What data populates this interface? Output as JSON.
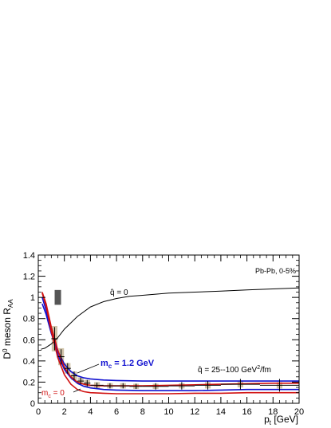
{
  "chart_data": {
    "type": "line",
    "xlabel": "p",
    "xlabel_sub": "t",
    "xlabel_unit": " [GeV]",
    "ylabel": "D",
    "ylabel_sup": "0",
    "ylabel_mid": " meson R",
    "ylabel_sub": "AA",
    "xlim": [
      0,
      20
    ],
    "ylim": [
      0,
      1.4
    ],
    "x_ticks": [
      0,
      2,
      4,
      6,
      8,
      10,
      12,
      14,
      16,
      18,
      20
    ],
    "y_ticks": [
      0,
      0.2,
      0.4,
      0.6,
      0.8,
      1.0,
      1.2,
      1.4
    ],
    "x_tick_labels": [
      "0",
      "2",
      "4",
      "6",
      "8",
      "10",
      "12",
      "14",
      "16",
      "18",
      "20"
    ],
    "y_tick_labels": [
      "0",
      "0.2",
      "0.4",
      "0.6",
      "0.8",
      "1",
      "1.2",
      "1.4"
    ],
    "annotations": {
      "system": "Pb-Pb,  0-5%",
      "qhat_zero_hat": "q̂",
      "qhat_zero": "q̂ = 0",
      "qhat_range": "q̂ = 25--100 GeV",
      "qhat_range_sup": "2",
      "qhat_range_tail": "/fm",
      "mc_massive": "m",
      "mc_massive_sub": "c",
      "mc_massive_tail": " = 1.2 GeV",
      "mc_zero": "m",
      "mc_zero_sub": "c",
      "mc_zero_tail": " = 0"
    },
    "colors": {
      "blue": "#1010d0",
      "red": "#d01010",
      "black": "#000000",
      "band": "#c8b89a",
      "norm_box": "#555555"
    },
    "series": [
      {
        "color": "black",
        "x": [
          0.2,
          0.5,
          1.0,
          1.5,
          2,
          3,
          4,
          5,
          6,
          7,
          8,
          10,
          12,
          14,
          16,
          18,
          20
        ],
        "y": [
          0.51,
          0.52,
          0.56,
          0.62,
          0.7,
          0.82,
          0.91,
          0.96,
          0.99,
          1.01,
          1.02,
          1.04,
          1.05,
          1.06,
          1.07,
          1.08,
          1.09
        ]
      },
      {
        "color": "blue",
        "x": [
          0.3,
          0.6,
          1.0,
          1.5,
          2,
          2.5,
          3,
          3.5,
          4,
          5,
          6,
          8,
          10,
          12,
          14,
          16,
          18,
          20
        ],
        "y": [
          0.94,
          0.84,
          0.66,
          0.49,
          0.37,
          0.3,
          0.26,
          0.24,
          0.23,
          0.22,
          0.215,
          0.21,
          0.21,
          0.21,
          0.21,
          0.21,
          0.21,
          0.21
        ]
      },
      {
        "color": "blue",
        "x": [
          0.3,
          0.6,
          1.0,
          1.5,
          2,
          2.5,
          3,
          3.5,
          4,
          5,
          6,
          8,
          10,
          12,
          14,
          16,
          18,
          20
        ],
        "y": [
          1.0,
          0.88,
          0.67,
          0.46,
          0.32,
          0.24,
          0.19,
          0.16,
          0.145,
          0.13,
          0.125,
          0.12,
          0.12,
          0.12,
          0.125,
          0.13,
          0.13,
          0.13
        ]
      },
      {
        "color": "red",
        "x": [
          0.3,
          0.6,
          1.0,
          1.5,
          2,
          2.5,
          3,
          3.5,
          4,
          5,
          6,
          8,
          10,
          12,
          14,
          16,
          18,
          20
        ],
        "y": [
          1.05,
          0.94,
          0.72,
          0.5,
          0.34,
          0.25,
          0.2,
          0.18,
          0.17,
          0.165,
          0.165,
          0.165,
          0.17,
          0.175,
          0.18,
          0.185,
          0.19,
          0.19
        ]
      },
      {
        "color": "red",
        "x": [
          0.3,
          0.6,
          1.0,
          1.5,
          2,
          2.5,
          3,
          3.5,
          4,
          5,
          6,
          8,
          10,
          12,
          14,
          16,
          18,
          20
        ],
        "y": [
          1.04,
          0.92,
          0.68,
          0.43,
          0.27,
          0.18,
          0.13,
          0.11,
          0.1,
          0.095,
          0.09,
          0.09,
          0.09,
          0.095,
          0.095,
          0.1,
          0.1,
          0.1
        ]
      }
    ],
    "data_points": {
      "name": "",
      "x": [
        1.25,
        1.75,
        2.25,
        2.75,
        3.25,
        3.75,
        4.5,
        5.5,
        6.5,
        7.5,
        9.0,
        11.0,
        13.0,
        15.5,
        18.5
      ],
      "x_err": [
        0.25,
        0.25,
        0.25,
        0.25,
        0.25,
        0.25,
        0.5,
        0.5,
        0.5,
        0.5,
        1.0,
        1.0,
        1.0,
        1.5,
        1.5
      ],
      "y": [
        0.61,
        0.44,
        0.33,
        0.26,
        0.21,
        0.19,
        0.17,
        0.165,
        0.165,
        0.16,
        0.16,
        0.165,
        0.17,
        0.18,
        0.17
      ],
      "y_err": [
        0.11,
        0.07,
        0.05,
        0.04,
        0.03,
        0.03,
        0.025,
        0.025,
        0.025,
        0.025,
        0.03,
        0.035,
        0.04,
        0.05,
        0.06
      ],
      "syst_err": [
        0.12,
        0.08,
        0.05,
        0.04,
        0.035,
        0.03,
        0.03,
        0.025,
        0.025,
        0.025,
        0.025,
        0.025,
        0.03,
        0.03,
        0.03
      ]
    },
    "normalization_box": {
      "x": 1.5,
      "y_low": 0.93,
      "y_high": 1.07
    },
    "grid": false,
    "legend": "none"
  }
}
